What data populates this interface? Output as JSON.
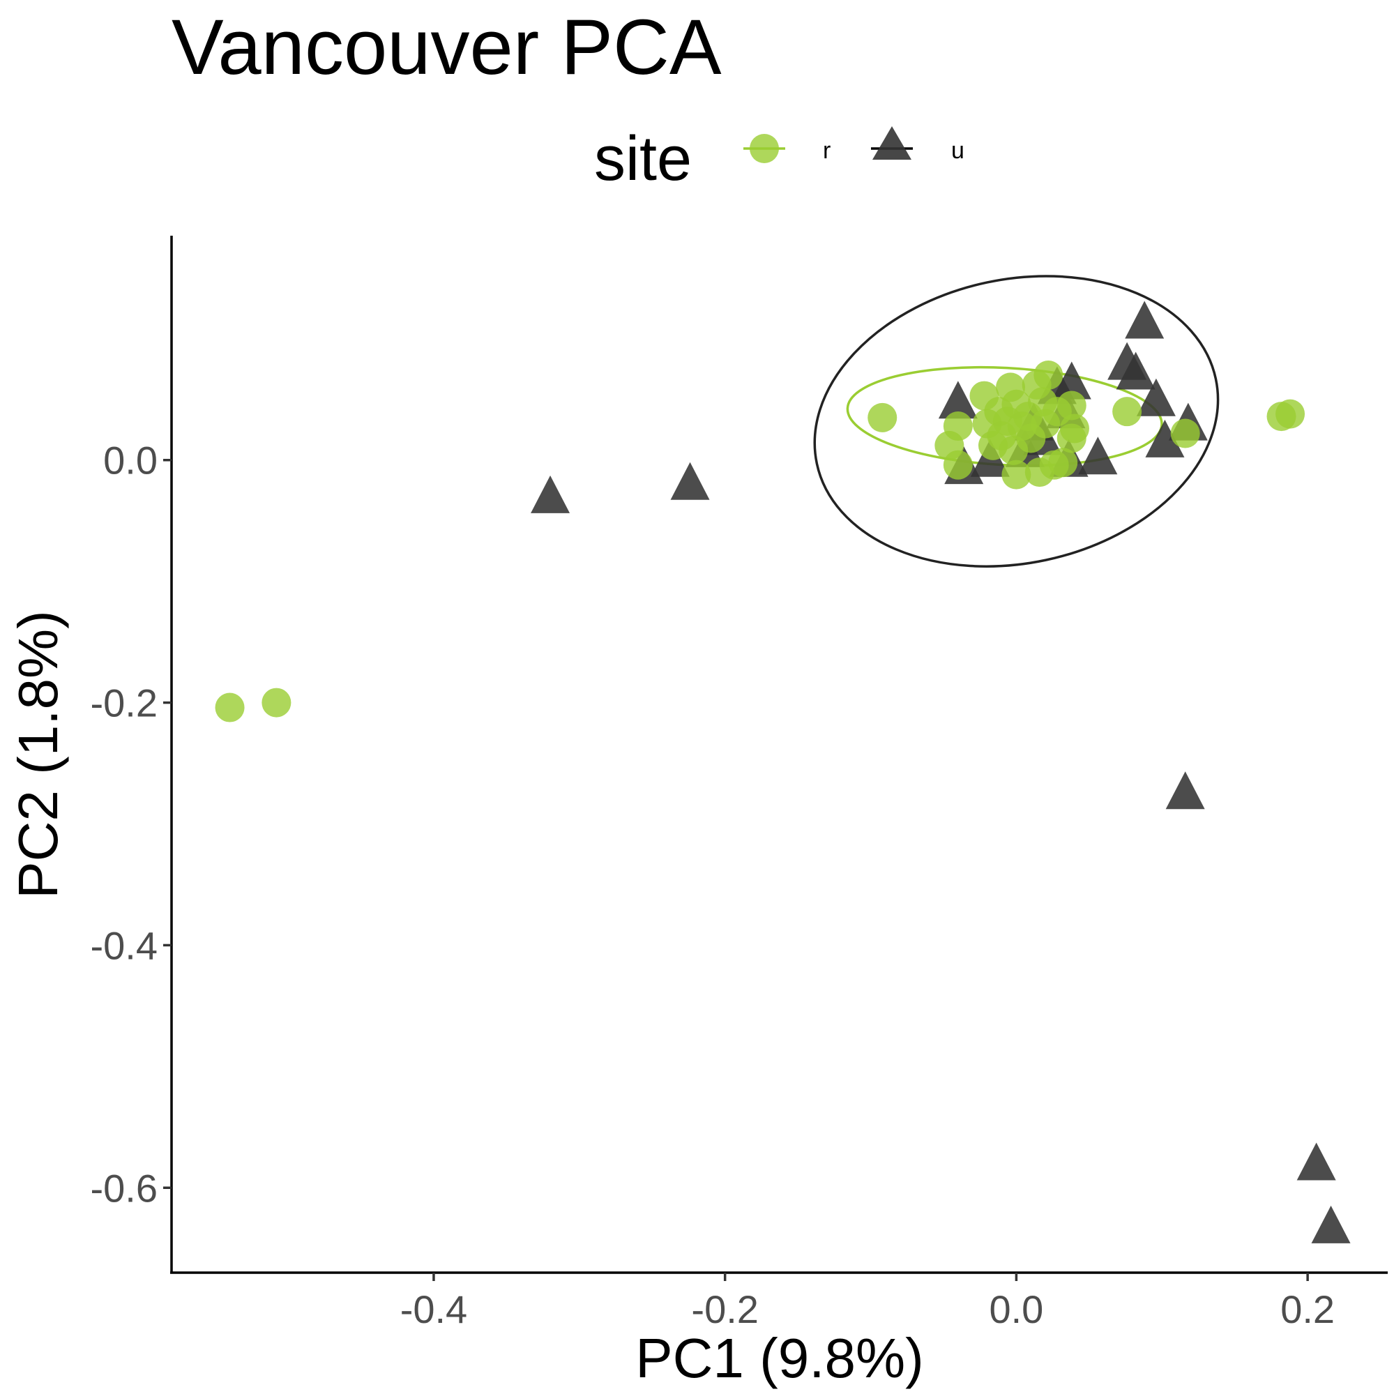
{
  "chart_data": {
    "type": "scatter",
    "title": "Vancouver PCA",
    "xlabel": "PC1 (9.8%)",
    "ylabel": "PC2 (1.8%)",
    "xlim": [
      -0.58,
      0.255
    ],
    "ylim": [
      -0.67,
      0.185
    ],
    "x_ticks": [
      -0.4,
      -0.2,
      0.0,
      0.2
    ],
    "x_tick_labels": [
      "-0.4",
      "-0.2",
      "0.0",
      "0.2"
    ],
    "y_ticks": [
      0.0,
      -0.2,
      -0.4,
      -0.6
    ],
    "y_tick_labels": [
      "0.0",
      "-0.2",
      "-0.4",
      "-0.6"
    ],
    "grid": false,
    "legend": {
      "title": "site",
      "position": "top"
    },
    "series": [
      {
        "name": "r",
        "marker": "circle",
        "color": "#9acd32",
        "ellipse": {
          "cx": -0.008,
          "cy": 0.036,
          "rx": 0.108,
          "ry": 0.04,
          "angle_deg": 3
        },
        "points": [
          {
            "x": -0.54,
            "y": -0.204
          },
          {
            "x": -0.508,
            "y": -0.2
          },
          {
            "x": -0.092,
            "y": 0.035
          },
          {
            "x": -0.046,
            "y": 0.012
          },
          {
            "x": -0.04,
            "y": 0.028
          },
          {
            "x": -0.04,
            "y": -0.004
          },
          {
            "x": -0.022,
            "y": 0.053
          },
          {
            "x": -0.02,
            "y": 0.03
          },
          {
            "x": -0.016,
            "y": 0.012
          },
          {
            "x": -0.012,
            "y": 0.04
          },
          {
            "x": -0.01,
            "y": 0.02
          },
          {
            "x": -0.006,
            "y": 0.032
          },
          {
            "x": -0.004,
            "y": 0.06
          },
          {
            "x": -0.002,
            "y": 0.008
          },
          {
            "x": 0.0,
            "y": -0.012
          },
          {
            "x": 0.0,
            "y": 0.046
          },
          {
            "x": 0.004,
            "y": 0.028
          },
          {
            "x": 0.008,
            "y": 0.036
          },
          {
            "x": 0.01,
            "y": 0.018
          },
          {
            "x": 0.014,
            "y": 0.062
          },
          {
            "x": 0.016,
            "y": -0.01
          },
          {
            "x": 0.018,
            "y": 0.048
          },
          {
            "x": 0.02,
            "y": 0.03
          },
          {
            "x": 0.022,
            "y": 0.07
          },
          {
            "x": 0.026,
            "y": -0.004
          },
          {
            "x": 0.028,
            "y": 0.04
          },
          {
            "x": 0.032,
            "y": -0.002
          },
          {
            "x": 0.038,
            "y": 0.018
          },
          {
            "x": 0.04,
            "y": 0.026
          },
          {
            "x": 0.038,
            "y": 0.045
          },
          {
            "x": 0.076,
            "y": 0.04
          },
          {
            "x": 0.116,
            "y": 0.022
          },
          {
            "x": 0.182,
            "y": 0.036
          },
          {
            "x": 0.188,
            "y": 0.038
          }
        ]
      },
      {
        "name": "u",
        "marker": "triangle",
        "color": "#333333",
        "ellipse": {
          "cx": 0.0,
          "cy": 0.032,
          "rx": 0.14,
          "ry": 0.117,
          "angle_deg": -12
        },
        "points": [
          {
            "x": -0.32,
            "y": -0.03
          },
          {
            "x": -0.224,
            "y": -0.019
          },
          {
            "x": -0.04,
            "y": 0.048
          },
          {
            "x": -0.036,
            "y": -0.006
          },
          {
            "x": -0.018,
            "y": 0.0
          },
          {
            "x": 0.006,
            "y": 0.008
          },
          {
            "x": 0.012,
            "y": 0.03
          },
          {
            "x": 0.018,
            "y": 0.018
          },
          {
            "x": 0.028,
            "y": 0.06
          },
          {
            "x": 0.034,
            "y": 0.04
          },
          {
            "x": 0.036,
            "y": 0.0
          },
          {
            "x": 0.038,
            "y": 0.064
          },
          {
            "x": 0.056,
            "y": 0.002
          },
          {
            "x": 0.076,
            "y": 0.08
          },
          {
            "x": 0.082,
            "y": 0.072
          },
          {
            "x": 0.088,
            "y": 0.114
          },
          {
            "x": 0.096,
            "y": 0.05
          },
          {
            "x": 0.102,
            "y": 0.016
          },
          {
            "x": 0.118,
            "y": 0.03
          },
          {
            "x": 0.116,
            "y": -0.274
          },
          {
            "x": 0.206,
            "y": -0.58
          },
          {
            "x": 0.216,
            "y": -0.632
          }
        ]
      }
    ]
  }
}
